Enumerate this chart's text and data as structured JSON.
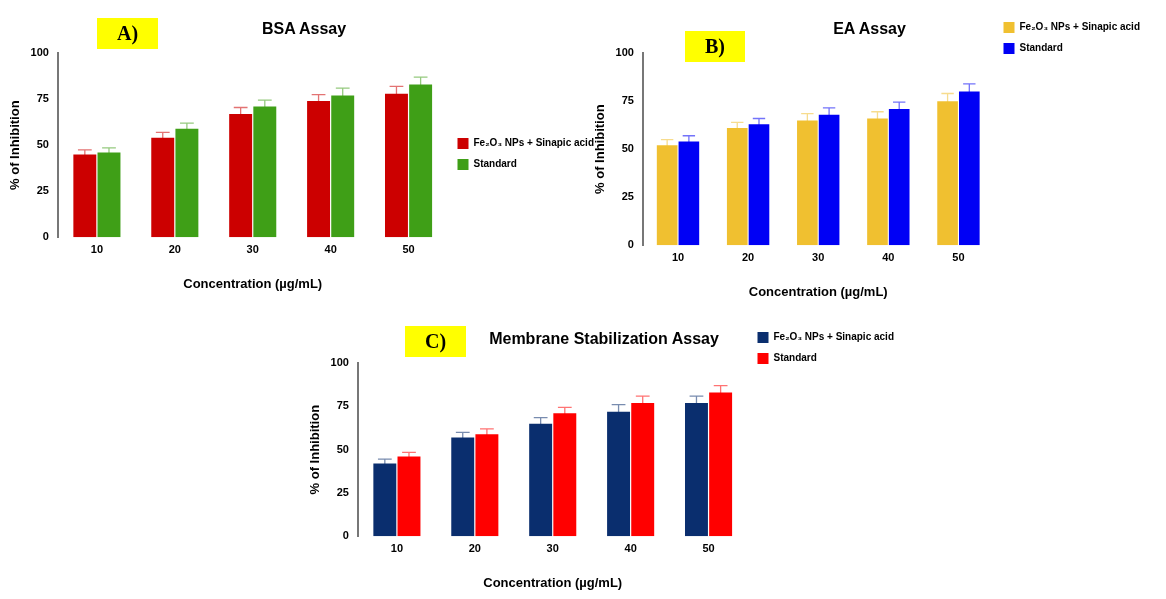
{
  "chart_data": [
    {
      "type": "bar",
      "title": "BSA Assay",
      "xlabel": "Concentration (µg/mL)",
      "ylabel": "% of Inhibition",
      "annotations": [
        "A)"
      ],
      "categories": [
        "10",
        "20",
        "30",
        "40",
        "50"
      ],
      "series": [
        {
          "name": "Fe₂O₃ NPs + Sinapic acid",
          "color": "#cc0000",
          "values": [
            45,
            54,
            67,
            74,
            78
          ],
          "errors": [
            2.5,
            3,
            3.5,
            3.5,
            4
          ]
        },
        {
          "name": "Standard",
          "color": "#3f9f17",
          "values": [
            46,
            59,
            71,
            77,
            83
          ],
          "errors": [
            2.5,
            3,
            3.5,
            4,
            4
          ]
        }
      ],
      "ylim": [
        0,
        100
      ],
      "yticks": [
        0,
        25,
        50,
        75,
        100
      ],
      "grid": false,
      "legend": "right"
    },
    {
      "type": "bar",
      "title": "EA Assay",
      "xlabel": "Concentration (µg/mL)",
      "ylabel": "% of Inhibition",
      "annotations": [
        "B)"
      ],
      "categories": [
        "10",
        "20",
        "30",
        "40",
        "50"
      ],
      "series": [
        {
          "name": "Fe₂O₃ NPs + Sinapic acid",
          "color": "#f0c030",
          "values": [
            52,
            61,
            65,
            66,
            75
          ],
          "errors": [
            3,
            3,
            3.5,
            3.5,
            4
          ]
        },
        {
          "name": "Standard",
          "color": "#0000f5",
          "values": [
            54,
            63,
            68,
            71,
            80
          ],
          "errors": [
            3,
            3,
            3.5,
            3.5,
            4
          ]
        }
      ],
      "ylim": [
        0,
        100
      ],
      "yticks": [
        0,
        25,
        50,
        75,
        100
      ],
      "grid": false,
      "legend": "top right"
    },
    {
      "type": "bar",
      "title": "Membrane Stabilization Assay",
      "xlabel": "Concentration (µg/mL)",
      "ylabel": "% of Inhibition",
      "annotations": [
        "C)"
      ],
      "categories": [
        "10",
        "20",
        "30",
        "40",
        "50"
      ],
      "series": [
        {
          "name": "Fe₂O₃ NPs + Sinapic acid",
          "color": "#0a2e6e",
          "values": [
            42,
            57,
            65,
            72,
            77
          ],
          "errors": [
            2.5,
            3,
            3.5,
            4,
            4
          ]
        },
        {
          "name": "Standard",
          "color": "#ff0000",
          "values": [
            46,
            59,
            71,
            77,
            83
          ],
          "errors": [
            2.5,
            3,
            3.5,
            4,
            4
          ]
        }
      ],
      "ylim": [
        0,
        100
      ],
      "yticks": [
        0,
        25,
        50,
        75,
        100
      ],
      "grid": false,
      "legend": "top right"
    }
  ]
}
